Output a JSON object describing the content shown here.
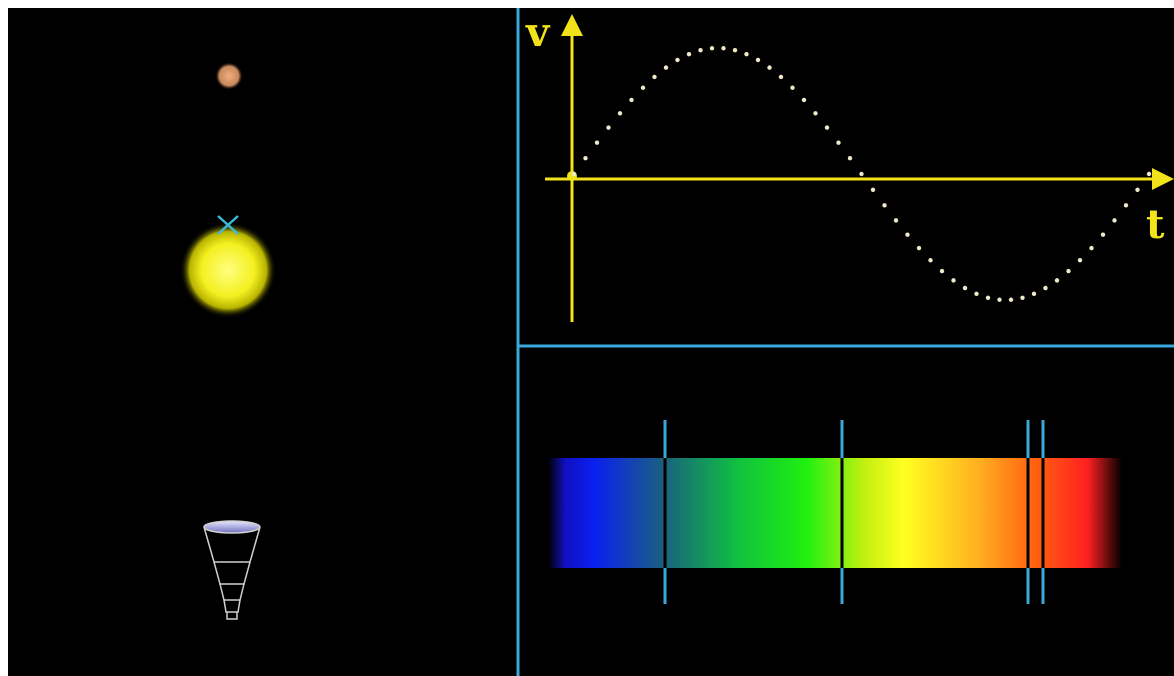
{
  "velocity_plot": {
    "y_axis_label": "v",
    "x_axis_label": "t"
  }
}
